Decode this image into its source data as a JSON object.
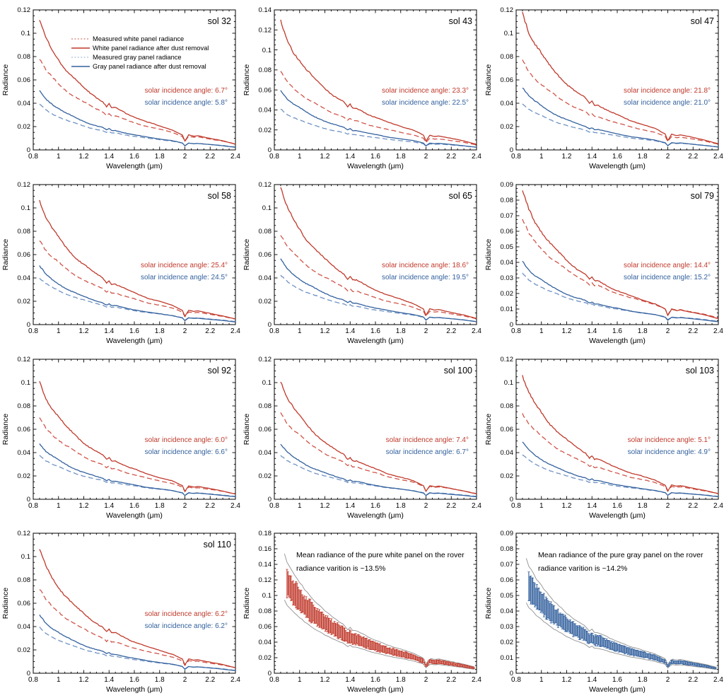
{
  "page": {
    "background": "#ffffff",
    "description": "Figure: measured and dust-corrected radiance spectra of rover calibration panels for multiple sols"
  },
  "shared": {
    "x_label": "Wavelength (μm)",
    "y_label": "Radiance",
    "xlim": [
      0.8,
      2.4
    ],
    "xticks": [
      0.8,
      1.0,
      1.2,
      1.4,
      1.6,
      1.8,
      2.0,
      2.2,
      2.4
    ],
    "xtick_labels": [
      "0.8",
      "1",
      "1.2",
      "1.4",
      "1.6",
      "1.8",
      "2",
      "2.2",
      "2.4"
    ],
    "colors": {
      "white_panel": "#c0392b",
      "white_panel_dashed": "#cf5448",
      "white_panel_faint": "#dd9187",
      "gray_panel": "#33619e",
      "gray_panel_dashed": "#6f92c4",
      "gray_panel_faint": "#b9c7dd",
      "envelope": "#909090",
      "axis": "#000000",
      "text": "#000000"
    },
    "profile_x": [
      0.85,
      0.9,
      0.95,
      1.0,
      1.05,
      1.1,
      1.15,
      1.2,
      1.25,
      1.3,
      1.35,
      1.38,
      1.4,
      1.42,
      1.45,
      1.5,
      1.55,
      1.6,
      1.65,
      1.7,
      1.75,
      1.8,
      1.85,
      1.9,
      1.95,
      1.98,
      2.0,
      2.03,
      2.07,
      2.1,
      2.2,
      2.3,
      2.35,
      2.4
    ],
    "profile": [
      1.0,
      0.86,
      0.77,
      0.7,
      0.63,
      0.575,
      0.525,
      0.48,
      0.44,
      0.405,
      0.375,
      0.335,
      0.355,
      0.325,
      0.325,
      0.3,
      0.275,
      0.255,
      0.235,
      0.215,
      0.2,
      0.185,
      0.17,
      0.155,
      0.13,
      0.115,
      0.068,
      0.115,
      0.105,
      0.11,
      0.09,
      0.07,
      0.057,
      0.045
    ],
    "measured_exponent": 0.88
  },
  "legend": {
    "items": [
      {
        "label": "Measured white panel radiance",
        "style": "dotted",
        "color": "white_panel_faint"
      },
      {
        "label": "White panel radiance after dust removal",
        "style": "solid",
        "color": "white_panel"
      },
      {
        "label": "Measured gray panel radiance",
        "style": "dotted",
        "color": "gray_panel_faint"
      },
      {
        "label": "Gray panel radiance after dust removal",
        "style": "solid",
        "color": "gray_panel"
      }
    ]
  },
  "chart_data": [
    {
      "type": "line",
      "title": "sol 32",
      "ylim": [
        0,
        0.12
      ],
      "ytick_step": 0.02,
      "show_legend": true,
      "series": [
        {
          "name": "Measured white panel radiance",
          "style": "dashed",
          "color": "white_panel_dashed",
          "peak": 0.078
        },
        {
          "name": "White panel radiance after dust removal",
          "style": "solid",
          "color": "white_panel",
          "peak": 0.111
        },
        {
          "name": "Measured gray panel radiance",
          "style": "dashed",
          "color": "gray_panel_dashed",
          "peak": 0.039
        },
        {
          "name": "Gray panel radiance after dust removal",
          "style": "solid",
          "color": "gray_panel",
          "peak": 0.051
        }
      ],
      "annotations": [
        {
          "text": "solar incidence angle: 6.7°",
          "color": "white_panel"
        },
        {
          "text": "solar incidence angle: 5.8°",
          "color": "gray_panel"
        }
      ]
    },
    {
      "type": "line",
      "title": "sol 43",
      "ylim": [
        0,
        0.14
      ],
      "ytick_step": 0.02,
      "show_legend": false,
      "series": [
        {
          "name": "Measured white panel radiance",
          "style": "dashed",
          "color": "white_panel_dashed",
          "peak": 0.078
        },
        {
          "name": "White panel radiance after dust removal",
          "style": "solid",
          "color": "white_panel",
          "peak": 0.128
        },
        {
          "name": "Measured gray panel radiance",
          "style": "dashed",
          "color": "gray_panel_dashed",
          "peak": 0.041
        },
        {
          "name": "Gray panel radiance after dust removal",
          "style": "solid",
          "color": "gray_panel",
          "peak": 0.06
        }
      ],
      "annotations": [
        {
          "text": "solar incidence angle: 23.3°",
          "color": "white_panel"
        },
        {
          "text": "solar incidence angle: 22.5°",
          "color": "gray_panel"
        }
      ]
    },
    {
      "type": "line",
      "title": "sol 47",
      "ylim": [
        0,
        0.12
      ],
      "ytick_step": 0.02,
      "show_legend": false,
      "series": [
        {
          "name": "Measured white panel radiance",
          "style": "dashed",
          "color": "white_panel_dashed",
          "peak": 0.077
        },
        {
          "name": "White panel radiance after dust removal",
          "style": "solid",
          "color": "white_panel",
          "peak": 0.118
        },
        {
          "name": "Measured gray panel radiance",
          "style": "dashed",
          "color": "gray_panel_dashed",
          "peak": 0.04
        },
        {
          "name": "Gray panel radiance after dust removal",
          "style": "solid",
          "color": "gray_panel",
          "peak": 0.054
        }
      ],
      "annotations": [
        {
          "text": "solar incidence angle: 21.8°",
          "color": "white_panel"
        },
        {
          "text": "solar incidence angle: 21.0°",
          "color": "gray_panel"
        }
      ]
    },
    {
      "type": "line",
      "title": "sol 58",
      "ylim": [
        0,
        0.12
      ],
      "ytick_step": 0.02,
      "show_legend": false,
      "series": [
        {
          "name": "Measured white panel radiance",
          "style": "dashed",
          "color": "white_panel_dashed",
          "peak": 0.073
        },
        {
          "name": "White panel radiance after dust removal",
          "style": "solid",
          "color": "white_panel",
          "peak": 0.107
        },
        {
          "name": "Measured gray panel radiance",
          "style": "dashed",
          "color": "gray_panel_dashed",
          "peak": 0.04
        },
        {
          "name": "Gray panel radiance after dust removal",
          "style": "solid",
          "color": "gray_panel",
          "peak": 0.05
        }
      ],
      "annotations": [
        {
          "text": "solar incidence angle: 25.4°",
          "color": "white_panel"
        },
        {
          "text": "solar incidence angle: 24.5°",
          "color": "gray_panel"
        }
      ]
    },
    {
      "type": "line",
      "title": "sol 65",
      "ylim": [
        0,
        0.12
      ],
      "ytick_step": 0.02,
      "show_legend": false,
      "series": [
        {
          "name": "Measured white panel radiance",
          "style": "dashed",
          "color": "white_panel_dashed",
          "peak": 0.077
        },
        {
          "name": "White panel radiance after dust removal",
          "style": "solid",
          "color": "white_panel",
          "peak": 0.117
        },
        {
          "name": "Measured gray panel radiance",
          "style": "dashed",
          "color": "gray_panel_dashed",
          "peak": 0.042
        },
        {
          "name": "Gray panel radiance after dust removal",
          "style": "solid",
          "color": "gray_panel",
          "peak": 0.056
        }
      ],
      "annotations": [
        {
          "text": "solar incidence angle: 18.6°",
          "color": "white_panel"
        },
        {
          "text": "solar incidence angle: 19.5°",
          "color": "gray_panel"
        }
      ]
    },
    {
      "type": "line",
      "title": "sol 79",
      "ylim": [
        0,
        0.09
      ],
      "ytick_step": 0.01,
      "show_legend": false,
      "series": [
        {
          "name": "Measured white panel radiance",
          "style": "dashed",
          "color": "white_panel_dashed",
          "peak": 0.067
        },
        {
          "name": "White panel radiance after dust removal",
          "style": "solid",
          "color": "white_panel",
          "peak": 0.086
        },
        {
          "name": "Measured gray panel radiance",
          "style": "dashed",
          "color": "gray_panel_dashed",
          "peak": 0.033
        },
        {
          "name": "Gray panel radiance after dust removal",
          "style": "solid",
          "color": "gray_panel",
          "peak": 0.041
        }
      ],
      "annotations": [
        {
          "text": "solar incidence angle: 14.4°",
          "color": "white_panel"
        },
        {
          "text": "solar incidence angle: 15.2°",
          "color": "gray_panel"
        }
      ]
    },
    {
      "type": "line",
      "title": "sol 92",
      "ylim": [
        0,
        0.12
      ],
      "ytick_step": 0.02,
      "show_legend": false,
      "series": [
        {
          "name": "Measured white panel radiance",
          "style": "dashed",
          "color": "white_panel_dashed",
          "peak": 0.07
        },
        {
          "name": "White panel radiance after dust removal",
          "style": "solid",
          "color": "white_panel",
          "peak": 0.101
        },
        {
          "name": "Measured gray panel radiance",
          "style": "dashed",
          "color": "gray_panel_dashed",
          "peak": 0.038
        },
        {
          "name": "Gray panel radiance after dust removal",
          "style": "solid",
          "color": "gray_panel",
          "peak": 0.048
        }
      ],
      "annotations": [
        {
          "text": "solar incidence angle: 6.0°",
          "color": "white_panel"
        },
        {
          "text": "solar incidence angle: 6.6°",
          "color": "gray_panel"
        }
      ]
    },
    {
      "type": "line",
      "title": "sol 100",
      "ylim": [
        0,
        0.12
      ],
      "ytick_step": 0.02,
      "show_legend": false,
      "series": [
        {
          "name": "Measured white panel radiance",
          "style": "dashed",
          "color": "white_panel_dashed",
          "peak": 0.075
        },
        {
          "name": "White panel radiance after dust removal",
          "style": "solid",
          "color": "white_panel",
          "peak": 0.102
        },
        {
          "name": "Measured gray panel radiance",
          "style": "dashed",
          "color": "gray_panel_dashed",
          "peak": 0.038
        },
        {
          "name": "Gray panel radiance after dust removal",
          "style": "solid",
          "color": "gray_panel",
          "peak": 0.047
        }
      ],
      "annotations": [
        {
          "text": "solar incidence angle: 7.4°",
          "color": "white_panel"
        },
        {
          "text": "solar incidence angle: 6.7°",
          "color": "gray_panel"
        }
      ]
    },
    {
      "type": "line",
      "title": "sol 103",
      "ylim": [
        0,
        0.12
      ],
      "ytick_step": 0.02,
      "show_legend": false,
      "series": [
        {
          "name": "Measured white panel radiance",
          "style": "dashed",
          "color": "white_panel_dashed",
          "peak": 0.074
        },
        {
          "name": "White panel radiance after dust removal",
          "style": "solid",
          "color": "white_panel",
          "peak": 0.106
        },
        {
          "name": "Measured gray panel radiance",
          "style": "dashed",
          "color": "gray_panel_dashed",
          "peak": 0.038
        },
        {
          "name": "Gray panel radiance after dust removal",
          "style": "solid",
          "color": "gray_panel",
          "peak": 0.049
        }
      ],
      "annotations": [
        {
          "text": "solar incidence angle: 5.1°",
          "color": "white_panel"
        },
        {
          "text": "solar incidence angle: 4.9°",
          "color": "gray_panel"
        }
      ]
    },
    {
      "type": "line",
      "title": "sol 110",
      "ylim": [
        0,
        0.12
      ],
      "ytick_step": 0.02,
      "show_legend": false,
      "series": [
        {
          "name": "Measured white panel radiance",
          "style": "dashed",
          "color": "white_panel_dashed",
          "peak": 0.072
        },
        {
          "name": "White panel radiance after dust removal",
          "style": "solid",
          "color": "white_panel",
          "peak": 0.106
        },
        {
          "name": "Measured gray panel radiance",
          "style": "dashed",
          "color": "gray_panel_dashed",
          "peak": 0.039
        },
        {
          "name": "Gray panel radiance after dust removal",
          "style": "solid",
          "color": "gray_panel",
          "peak": 0.05
        }
      ],
      "annotations": [
        {
          "text": "solar incidence angle: 6.2°",
          "color": "white_panel"
        },
        {
          "text": "solar incidence angle: 6.2°",
          "color": "gray_panel"
        }
      ]
    },
    {
      "type": "errorband",
      "title": "",
      "ylim": [
        0,
        0.18
      ],
      "ytick_step": 0.02,
      "color": "white_panel",
      "mean_peak": 0.135,
      "bar_rel": 0.145,
      "envelope_rel": 0.24,
      "text_lines": [
        "Mean radiance of the pure white panel on the rover",
        "radiance varition is ~13.5%"
      ]
    },
    {
      "type": "errorband",
      "title": "",
      "ylim": [
        0,
        0.09
      ],
      "ytick_step": 0.01,
      "color": "gray_panel",
      "mean_peak": 0.065,
      "bar_rel": 0.14,
      "envelope_rel": 0.24,
      "text_lines": [
        "Mean radiance of the pure gray panel on the rover",
        "radiance varition is ~14.2%"
      ]
    }
  ]
}
